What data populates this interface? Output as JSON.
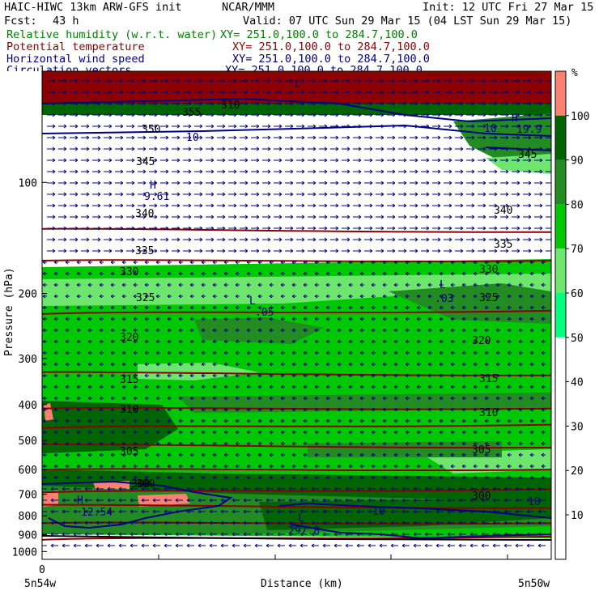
{
  "header": {
    "title": "HAIC-HIWC 13km ARW-GFS init",
    "source": "NCAR/MMM",
    "init": "Init: 12 UTC Fri 27 Mar 15",
    "fcst_label": "Fcst:",
    "fcst_value": "43 h",
    "valid": "Valid: 07 UTC Sun 29 Mar 15 (04 LST Sun 29 Mar 15)"
  },
  "fields": [
    {
      "name": "Relative humidity (w.r.t. water)",
      "xy": "XY= 251.0,100.0 to 284.7,100.0",
      "color": "#008000"
    },
    {
      "name": "Potential temperature",
      "xy": "XY= 251.0,100.0 to 284.7,100.0",
      "color": "#8b0000"
    },
    {
      "name": "Horizontal wind speed",
      "xy": "XY= 251.0,100.0 to 284.7,100.0",
      "color": "#000080"
    },
    {
      "name": "Circulation vectors",
      "xy": "XY= 251.0,100.0 to 284.7,100.0",
      "color": "#000080"
    }
  ],
  "colorbar": {
    "unit": "%",
    "labels": [
      "100",
      "90",
      "80",
      "70",
      "60",
      "50",
      "40",
      "30",
      "20",
      "10"
    ],
    "colors": [
      "#fa8072",
      "#006400",
      "#228b22",
      "#00c800",
      "#6ee66e",
      "#00ff80",
      "#ffffff",
      "#ffffff",
      "#ffffff",
      "#ffffff",
      "#ffffff"
    ]
  },
  "chart_data": {
    "type": "heatmap",
    "title": "HAIC-HIWC 13km ARW-GFS init",
    "xlabel": "Distance (km)",
    "ylabel": "Pressure (hPa)",
    "x_tick_label": "0",
    "x_start_label": "5n54w",
    "x_end_label": "5n50w",
    "y_ticks": [
      100,
      200,
      300,
      400,
      500,
      600,
      700,
      800,
      900,
      1000
    ],
    "ylim": [
      1050,
      50
    ],
    "y_scale": "log",
    "theta_contours": [
      {
        "value": 355,
        "p": 135
      },
      {
        "value": 350,
        "p": 163
      },
      {
        "value": 345,
        "p": 225
      },
      {
        "value": 340,
        "p": 330
      },
      {
        "value": 335,
        "p": 410
      },
      {
        "value": 330,
        "p": 458
      },
      {
        "value": 325,
        "p": 518
      },
      {
        "value": 320,
        "p": 600
      },
      {
        "value": 315,
        "p": 685
      },
      {
        "value": 310,
        "p": 755
      },
      {
        "value": 305,
        "p": 838
      },
      {
        "value": 300,
        "p": 920
      }
    ],
    "theta_labels": [
      "355",
      "350",
      "345",
      "340",
      "335",
      "330",
      "325",
      "320",
      "315",
      "310",
      "305",
      "300",
      "300",
      "310",
      "340",
      "335",
      "330",
      "325",
      "320",
      "315",
      "310",
      "305",
      "300",
      "345"
    ],
    "wind_labels": [
      "10",
      "10",
      "10",
      "10"
    ],
    "extrema": [
      {
        "mark": "H",
        "value": "9.61"
      },
      {
        "mark": "H",
        "value": "19.9"
      },
      {
        "mark": "L",
        "value": ".05"
      },
      {
        "mark": "L",
        "value": ".03"
      },
      {
        "mark": "H",
        "value": "12.54"
      },
      {
        "mark": "L",
        "value": "297.8"
      },
      {
        "mark": "L",
        "value": ""
      }
    ]
  }
}
